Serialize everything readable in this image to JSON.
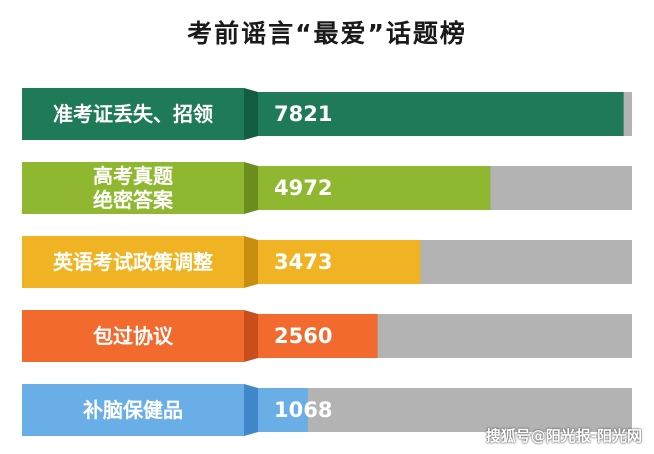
{
  "title": "考前谣言“最爱”话题榜",
  "watermark": "搜狐号@阳光报-阳光网",
  "chart_data": {
    "type": "bar",
    "orientation": "horizontal",
    "title": "考前谣言“最爱”话题榜",
    "categories": [
      [
        "准考证丢失、招领"
      ],
      [
        "高考真题",
        "绝密答案"
      ],
      [
        "英语考试政策调整"
      ],
      [
        "包过协议"
      ],
      [
        "补脑保健品"
      ]
    ],
    "values": [
      7821,
      4972,
      3473,
      2560,
      1068
    ],
    "value_labels": [
      "7821",
      "4972",
      "3473",
      "2560",
      "1068"
    ],
    "xlim": [
      0,
      8000
    ],
    "grid": false,
    "legend": "none",
    "colors": {
      "bars": [
        "#1f7a57",
        "#8fb830",
        "#f0b323",
        "#f26a2e",
        "#6aaee8"
      ],
      "bars_dark": [
        "#125c3f",
        "#6b8e1f",
        "#c98e10",
        "#c94e1c",
        "#3f87c8"
      ],
      "track": "#b3b3b3",
      "label_text": "#ffffff",
      "value_text": "#ffffff"
    }
  }
}
